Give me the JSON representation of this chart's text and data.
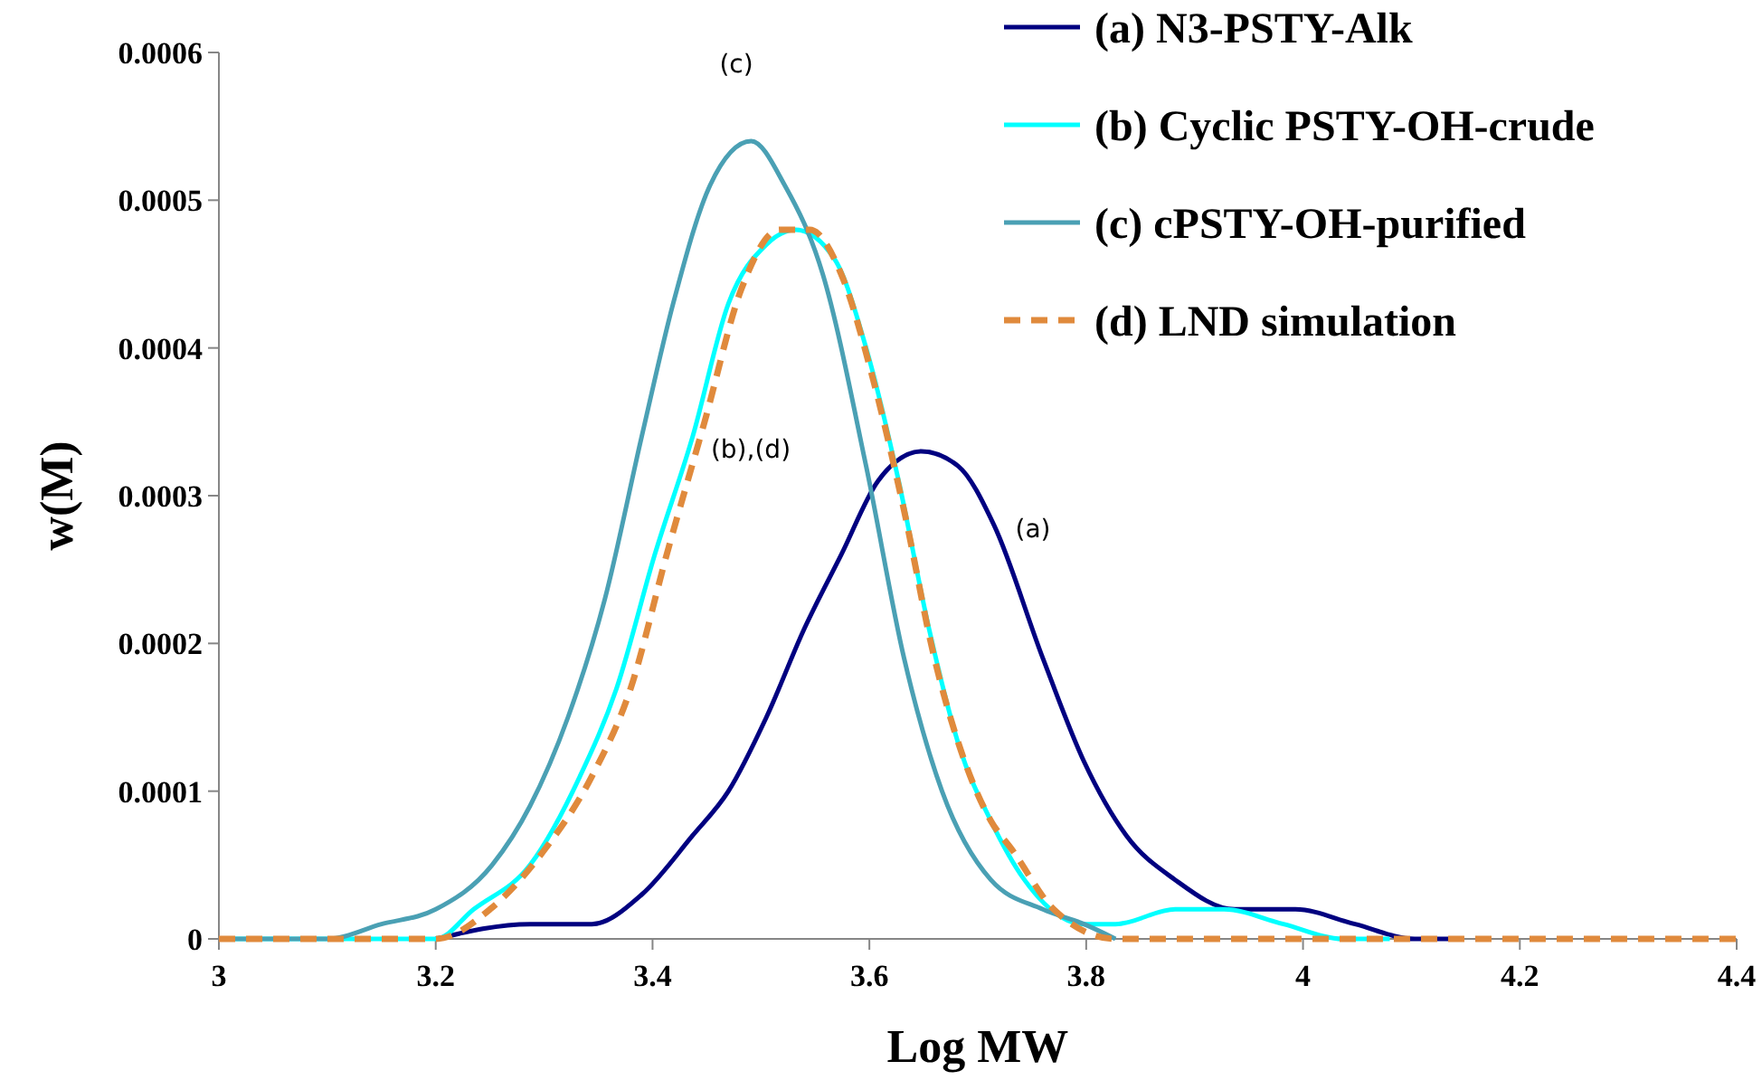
{
  "chart_data": {
    "type": "line",
    "xlabel": "Log MW",
    "ylabel": "w(M)",
    "xlim": [
      3,
      4.4
    ],
    "ylim": [
      0,
      0.0006
    ],
    "xticks": [
      3,
      3.2,
      3.4,
      3.6,
      3.8,
      4,
      4.2,
      4.4
    ],
    "yticks": [
      0,
      0.0001,
      0.0002,
      0.0003,
      0.0004,
      0.0005,
      0.0006
    ],
    "grid": false,
    "legend": "top right",
    "marker": "none",
    "series": [
      {
        "name": "(a) N3-PSTY-Alk",
        "color": "#000080",
        "line_style": "solid",
        "x": [
          3.2,
          3.287,
          3.344,
          3.39,
          3.437,
          3.47,
          3.505,
          3.54,
          3.574,
          3.608,
          3.648,
          3.682,
          3.715,
          3.76,
          3.798,
          3.837,
          3.882,
          3.937,
          3.993,
          4.048,
          4.103,
          4.148
        ],
        "values": [
          0,
          1e-05,
          1e-05,
          3e-05,
          7e-05,
          0.0001,
          0.00015,
          0.00021,
          0.00026,
          0.00031,
          0.00033,
          0.00032,
          0.00028,
          0.00019,
          0.00012,
          7e-05,
          4e-05,
          2e-05,
          2e-05,
          1e-05,
          0,
          0
        ]
      },
      {
        "name": "(b) Cyclic PSTY-OH-crude",
        "color": "#00ffff",
        "line_style": "solid",
        "x": [
          3,
          3.2,
          3.235,
          3.287,
          3.333,
          3.367,
          3.402,
          3.437,
          3.47,
          3.505,
          3.532,
          3.568,
          3.597,
          3.627,
          3.655,
          3.683,
          3.712,
          3.743,
          3.798,
          3.827,
          3.882,
          3.927,
          3.982,
          4.037,
          4.08
        ],
        "values": [
          0,
          0,
          2e-05,
          5e-05,
          0.00011,
          0.00017,
          0.00026,
          0.00034,
          0.00043,
          0.00047,
          0.00048,
          0.00046,
          0.0004,
          0.00031,
          0.00021,
          0.00013,
          8e-05,
          4e-05,
          1e-05,
          1e-05,
          2e-05,
          2e-05,
          1e-05,
          0,
          0
        ]
      },
      {
        "name": "(c) cPSTY-OH-purified",
        "color": "#4aa0b4",
        "line_style": "solid",
        "x": [
          3,
          3.1,
          3.15,
          3.2,
          3.252,
          3.287,
          3.322,
          3.356,
          3.39,
          3.419,
          3.453,
          3.491,
          3.522,
          3.557,
          3.597,
          3.632,
          3.667,
          3.712,
          3.76,
          3.798,
          3.827
        ],
        "values": [
          0,
          0,
          1e-05,
          2e-05,
          5e-05,
          9e-05,
          0.00015,
          0.00023,
          0.00034,
          0.00043,
          0.00051,
          0.00054,
          0.00051,
          0.00045,
          0.00032,
          0.00019,
          0.0001,
          4e-05,
          2e-05,
          1e-05,
          0
        ]
      },
      {
        "name": "(d) LND simulation",
        "color": "#e08a3c",
        "line_style": "dashed",
        "x": [
          3,
          3.2,
          3.25,
          3.3,
          3.344,
          3.38,
          3.413,
          3.448,
          3.482,
          3.517,
          3.545,
          3.574,
          3.603,
          3.632,
          3.66,
          3.688,
          3.712,
          3.732,
          3.77,
          3.827,
          3.9,
          4.4
        ],
        "values": [
          0,
          0,
          2e-05,
          6e-05,
          0.00011,
          0.00017,
          0.00026,
          0.00035,
          0.00044,
          0.00048,
          0.00048,
          0.00045,
          0.00038,
          0.00029,
          0.00019,
          0.00012,
          8e-05,
          6e-05,
          2e-05,
          0,
          0,
          0
        ]
      }
    ],
    "annotations": [
      "(c)",
      "(b),(d)",
      "(a)"
    ]
  }
}
